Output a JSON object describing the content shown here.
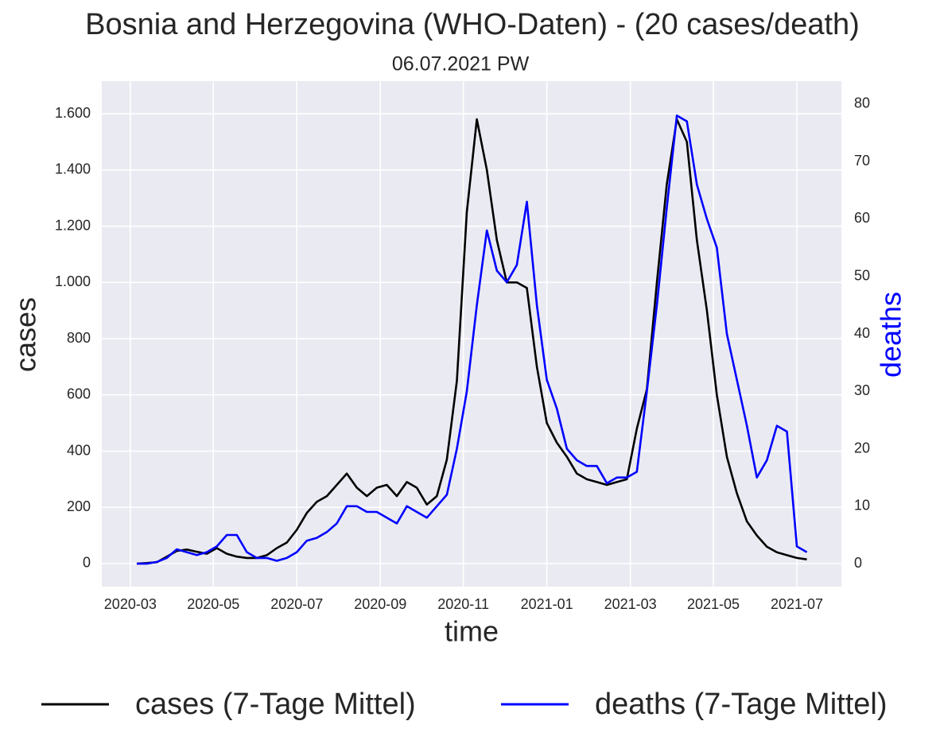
{
  "chart_data": {
    "type": "line",
    "title": "Bosnia and Herzegovina (WHO-Daten) - (20 cases/death)",
    "subtitle": "06.07.2021 PW",
    "x_label": "time",
    "y_label": "cases",
    "y2_label": "deaths",
    "x": [
      2020.18,
      2020.2,
      2020.22,
      2020.24,
      2020.26,
      2020.28,
      2020.3,
      2020.32,
      2020.34,
      2020.36,
      2020.38,
      2020.4,
      2020.42,
      2020.44,
      2020.46,
      2020.48,
      2020.5,
      2020.52,
      2020.54,
      2020.56,
      2020.58,
      2020.6,
      2020.62,
      2020.64,
      2020.66,
      2020.68,
      2020.7,
      2020.72,
      2020.74,
      2020.76,
      2020.78,
      2020.8,
      2020.82,
      2020.84,
      2020.86,
      2020.88,
      2020.9,
      2020.92,
      2020.94,
      2020.96,
      2020.98,
      2021.0,
      2021.02,
      2021.04,
      2021.06,
      2021.08,
      2021.1,
      2021.12,
      2021.14,
      2021.16,
      2021.18,
      2021.2,
      2021.22,
      2021.24,
      2021.26,
      2021.28,
      2021.3,
      2021.32,
      2021.34,
      2021.36,
      2021.38,
      2021.4,
      2021.42,
      2021.44,
      2021.46,
      2021.48,
      2021.5,
      2021.52
    ],
    "series": [
      {
        "name": "cases (7-Tage Mittel)",
        "color": "#000000",
        "values": [
          0,
          2,
          5,
          25,
          45,
          50,
          42,
          35,
          55,
          35,
          25,
          20,
          20,
          30,
          55,
          75,
          120,
          180,
          220,
          240,
          280,
          320,
          270,
          240,
          270,
          280,
          240,
          290,
          270,
          210,
          240,
          370,
          650,
          1250,
          1580,
          1400,
          1150,
          1000,
          1000,
          980,
          700,
          500,
          430,
          380,
          320,
          300,
          290,
          280,
          290,
          300,
          480,
          620,
          1000,
          1350,
          1580,
          1500,
          1150,
          900,
          600,
          380,
          250,
          150,
          100,
          60,
          40,
          30,
          20,
          15
        ]
      },
      {
        "name": "deaths (7-Tage Mittel)",
        "color": "#0000ff",
        "axis": "y2",
        "values": [
          0,
          0,
          0.3,
          1,
          2.5,
          2,
          1.5,
          2,
          3,
          5,
          5,
          2,
          1,
          1,
          0.5,
          1,
          2,
          4,
          4.5,
          5.5,
          7,
          10,
          10,
          9,
          9,
          8,
          7,
          10,
          9,
          8,
          10,
          12,
          20,
          30,
          45,
          58,
          51,
          49,
          52,
          63,
          45,
          32,
          27,
          20,
          18,
          17,
          17,
          14,
          15,
          15,
          16,
          30,
          45,
          62,
          78,
          77,
          66,
          60,
          55,
          40,
          32,
          24,
          15,
          18,
          24,
          23,
          3,
          2
        ]
      }
    ],
    "xlim": [
      2020.11,
      2021.589
    ],
    "xticks": [
      {
        "value": 2020.167,
        "label": "2020-03"
      },
      {
        "value": 2020.333,
        "label": "2020-05"
      },
      {
        "value": 2020.5,
        "label": "2020-07"
      },
      {
        "value": 2020.667,
        "label": "2020-09"
      },
      {
        "value": 2020.833,
        "label": "2020-11"
      },
      {
        "value": 2021.0,
        "label": "2021-01"
      },
      {
        "value": 2021.167,
        "label": "2021-03"
      },
      {
        "value": 2021.333,
        "label": "2021-05"
      },
      {
        "value": 2021.5,
        "label": "2021-07"
      }
    ],
    "ylim": [
      -82,
      1716
    ],
    "yticks": [
      0,
      200,
      400,
      600,
      800,
      {
        "value": 1000,
        "label": "1.000"
      },
      {
        "value": 1200,
        "label": "1.200"
      },
      {
        "value": 1400,
        "label": "1.400"
      },
      {
        "value": 1600,
        "label": "1.600"
      }
    ],
    "y2lim": [
      -4,
      84
    ],
    "y2ticks": [
      0,
      10,
      20,
      30,
      40,
      50,
      60,
      70,
      80
    ],
    "grid": true,
    "background": "#eaeaf2",
    "legend": "bottom"
  }
}
